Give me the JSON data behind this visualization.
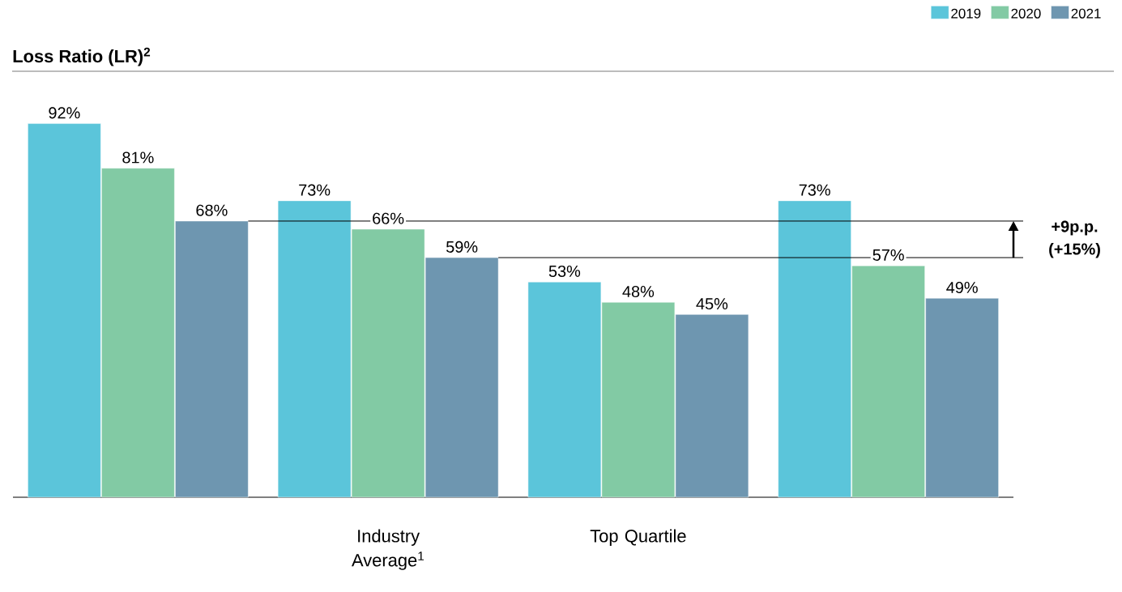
{
  "chart_data": {
    "type": "bar",
    "title": "Loss Ratio (LR)$^{2}$",
    "categories": [
      null,
      "Industry Average$^{1}$",
      "Top Quartile",
      null
    ],
    "series": [
      {
        "name": "2019",
        "color": "#5bc5da",
        "values": [
          92,
          73,
          53,
          73
        ],
        "value_labels": [
          "92%",
          "73%",
          "53%",
          "73%"
        ]
      },
      {
        "name": "2020",
        "color": "#82caa4",
        "values": [
          81,
          66,
          48,
          57
        ],
        "value_labels": [
          "81%",
          "66%",
          "48%",
          "57%"
        ]
      },
      {
        "name": "2021",
        "color": "#6e96b0",
        "values": [
          68,
          59,
          45,
          49
        ],
        "value_labels": [
          "68%",
          "59%",
          "45%",
          "49%"
        ]
      }
    ],
    "ref_lines": [
      {
        "axis": "y",
        "value": 68
      },
      {
        "axis": "y",
        "value": 59
      }
    ],
    "annotations": [
      "+9p.p. (+15%)"
    ],
    "legend": "top right"
  }
}
